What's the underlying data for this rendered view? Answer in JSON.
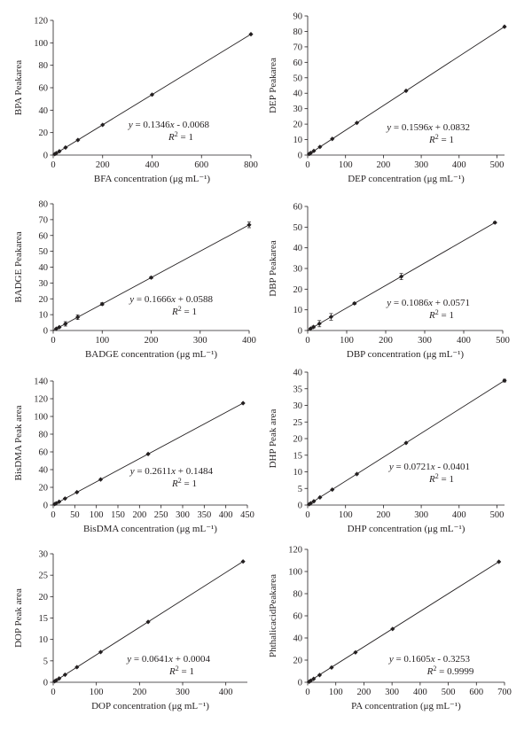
{
  "chart_data": [
    {
      "type": "scatter",
      "ylabel": "BPA Peakarea",
      "xlabel": "BFA concentration (μg mL⁻¹)",
      "xlim": [
        0,
        800
      ],
      "ylim": [
        0,
        120
      ],
      "xticks": [
        0,
        200,
        400,
        600,
        800
      ],
      "yticks": [
        0,
        20,
        40,
        60,
        80,
        100,
        120
      ],
      "x": [
        6.25,
        12.5,
        25,
        50,
        100,
        200,
        400,
        800
      ],
      "y": [
        0.83,
        1.68,
        3.36,
        6.72,
        13.45,
        26.91,
        53.83,
        107.67
      ],
      "trendline": {
        "slope": 0.1346,
        "intercept": -0.0068
      },
      "equation": {
        "prefix": "y = 0.1346",
        "suffix": " - 0.0068",
        "r2_value": " = 1"
      }
    },
    {
      "type": "scatter",
      "ylabel": "DEP Peakarea",
      "xlabel": "DEP concentration (μg mL⁻¹)",
      "xlim": [
        0,
        520
      ],
      "ylim": [
        0,
        90
      ],
      "xticks": [
        0,
        100,
        200,
        300,
        400,
        500
      ],
      "yticks": [
        0,
        10,
        20,
        30,
        40,
        50,
        60,
        70,
        80,
        90
      ],
      "x": [
        4.06,
        8.13,
        16.25,
        32.5,
        65,
        130,
        260,
        520
      ],
      "y": [
        0.73,
        1.38,
        2.68,
        5.27,
        10.46,
        20.83,
        41.58,
        83.07
      ],
      "trendline": {
        "slope": 0.1596,
        "intercept": 0.0832
      },
      "equation": {
        "prefix": "y = 0.1596",
        "suffix": " + 0.0832",
        "r2_value": " = 1"
      }
    },
    {
      "type": "scatter",
      "ylabel": "BADGE Peakarea",
      "xlabel": "BADGE concentration (μg mL⁻¹)",
      "xlim": [
        0,
        400
      ],
      "ylim": [
        0,
        80
      ],
      "xticks": [
        0,
        100,
        200,
        300,
        400
      ],
      "yticks": [
        0,
        10,
        20,
        30,
        40,
        50,
        60,
        70,
        80
      ],
      "x": [
        6.25,
        12.5,
        25,
        50,
        100,
        200,
        400
      ],
      "y": [
        1.1,
        2.1,
        4.2,
        8.4,
        16.7,
        33.4,
        66.7
      ],
      "errors": [
        0.3,
        0.4,
        1.4,
        1.5,
        0.8,
        0.6,
        1.8
      ],
      "trendline": {
        "slope": 0.1666,
        "intercept": 0.0588
      },
      "equation": {
        "prefix": "y = 0.1666",
        "suffix": " + 0.0588",
        "r2_value": " = 1"
      }
    },
    {
      "type": "scatter",
      "ylabel": "DBP Peakarea",
      "xlabel": "DBP concentration (μg mL⁻¹)",
      "xlim": [
        0,
        500
      ],
      "ylim": [
        0,
        60
      ],
      "xticks": [
        0,
        100,
        200,
        300,
        400,
        500
      ],
      "yticks": [
        0,
        10,
        20,
        30,
        40,
        50,
        60
      ],
      "x": [
        7.5,
        15,
        30,
        60,
        120,
        240,
        480
      ],
      "y": [
        0.9,
        1.7,
        3.3,
        6.6,
        13.1,
        26.1,
        52.2
      ],
      "errors": [
        0.3,
        0.5,
        1.5,
        1.6,
        0.5,
        1.5,
        0.4
      ],
      "trendline": {
        "slope": 0.1086,
        "intercept": 0.0571
      },
      "equation": {
        "prefix": "y = 0.1086",
        "suffix": " + 0.0571",
        "r2_value": " = 1"
      }
    },
    {
      "type": "scatter",
      "ylabel": "BisDMA Peak area",
      "xlabel": "BisDMA concentration (μg mL⁻¹)",
      "xlim": [
        0,
        450
      ],
      "ylim": [
        0,
        140
      ],
      "xticks": [
        0,
        50,
        100,
        150,
        200,
        250,
        300,
        350,
        400,
        450
      ],
      "yticks": [
        0,
        20,
        40,
        60,
        80,
        100,
        120,
        140
      ],
      "x": [
        3.44,
        6.88,
        13.75,
        27.5,
        55,
        110,
        220,
        440
      ],
      "y": [
        1.05,
        1.95,
        3.74,
        7.33,
        14.51,
        28.87,
        57.59,
        115.03
      ],
      "trendline": {
        "slope": 0.2611,
        "intercept": 0.1484
      },
      "equation": {
        "prefix": "y = 0.2611",
        "suffix": " + 0.1484",
        "r2_value": " = 1"
      }
    },
    {
      "type": "scatter",
      "ylabel": "DHP Peak area",
      "xlabel": "DHP concentration (μg mL⁻¹)",
      "xlim": [
        0,
        520
      ],
      "ylim": [
        0,
        40
      ],
      "xticks": [
        0,
        100,
        200,
        300,
        400,
        500
      ],
      "yticks": [
        0,
        5,
        10,
        15,
        20,
        25,
        30,
        35,
        40
      ],
      "x": [
        4.06,
        8.13,
        16.25,
        32.5,
        65,
        130,
        260,
        520
      ],
      "y": [
        0.25,
        0.55,
        1.13,
        2.3,
        4.65,
        9.33,
        18.71,
        37.45
      ],
      "errors": [
        0,
        0,
        0,
        0,
        0,
        0,
        0,
        0.4
      ],
      "trendline": {
        "slope": 0.0721,
        "intercept": -0.0401
      },
      "equation": {
        "prefix": "y = 0.0721",
        "suffix": " - 0.0401",
        "r2_value": " = 1"
      }
    },
    {
      "type": "scatter",
      "ylabel": "DOP Peak area",
      "xlabel": "DOP concentration (μg mL⁻¹)",
      "xlim": [
        0,
        450
      ],
      "ylim": [
        0,
        30
      ],
      "xticks": [
        0,
        100,
        200,
        300,
        400
      ],
      "yticks": [
        0,
        5,
        10,
        15,
        20,
        25,
        30
      ],
      "x": [
        3.44,
        6.88,
        13.75,
        27.5,
        55,
        110,
        220,
        440
      ],
      "y": [
        0.22,
        0.44,
        0.88,
        1.76,
        3.53,
        7.05,
        14.1,
        28.2
      ],
      "trendline": {
        "slope": 0.0641,
        "intercept": 0.0004
      },
      "equation": {
        "prefix": "y = 0.0641",
        "suffix": " + 0.0004",
        "r2_value": " = 1"
      }
    },
    {
      "type": "scatter",
      "ylabel": "PhthalicacidPeakarea",
      "xlabel": "PA concentration (μg mL⁻¹)",
      "xlim": [
        0,
        700
      ],
      "ylim": [
        0,
        120
      ],
      "xticks": [
        0,
        100,
        200,
        300,
        400,
        500,
        600,
        700
      ],
      "yticks": [
        0,
        20,
        40,
        60,
        80,
        100,
        120
      ],
      "x": [
        5.3,
        10.6,
        21.3,
        42.5,
        85,
        170,
        302,
        680
      ],
      "y": [
        0.53,
        1.38,
        3.09,
        6.5,
        13.32,
        26.96,
        48.14,
        108.81
      ],
      "trendline": {
        "slope": 0.1605,
        "intercept": -0.3253
      },
      "equation": {
        "prefix": "y = 0.1605",
        "suffix": " - 0.3253",
        "r2_value": " = 0.9999"
      }
    }
  ]
}
